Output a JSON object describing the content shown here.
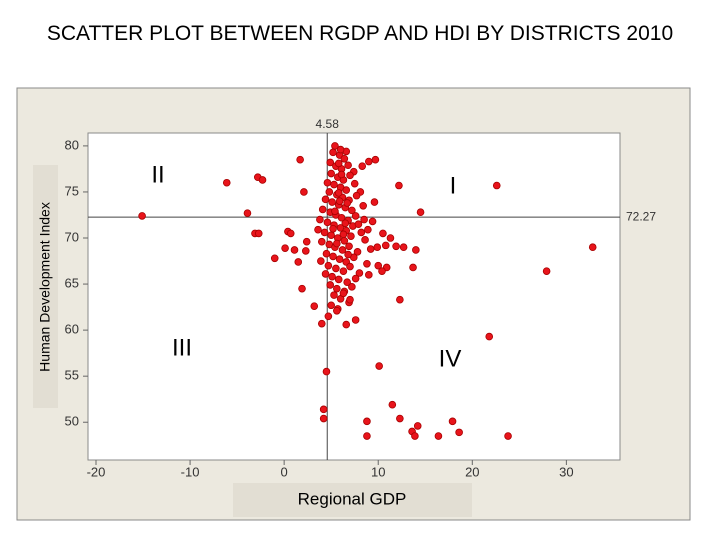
{
  "chart_data": {
    "type": "scatter",
    "title": "SCATTER PLOT BETWEEN RGDP AND HDI BY DISTRICTS 2010",
    "x_label": "Regional GDP",
    "y_label": "Human Development Index",
    "color": "#e8141b",
    "xlim": [
      -20.85,
      35.7
    ],
    "ylim": [
      45.9,
      81.4
    ],
    "xticks": [
      -20,
      -10,
      0,
      10,
      20,
      30
    ],
    "yticks": [
      50,
      55,
      60,
      65,
      70,
      75,
      80
    ],
    "reference_lines": {
      "x": 4.58,
      "y": 72.27
    },
    "annotations": [
      "I",
      "II",
      "III",
      "IV"
    ],
    "x": [
      5.2,
      5.9,
      6.4,
      4.9,
      5.5,
      6.1,
      6.8,
      7.4,
      5.0,
      5.7,
      6.3,
      7.0,
      4.6,
      5.3,
      6.0,
      6.6,
      7.5,
      8.1,
      4.8,
      5.6,
      6.2,
      6.9,
      7.7,
      4.4,
      5.1,
      5.8,
      6.5,
      7.2,
      8.4,
      4.1,
      4.9,
      5.5,
      6.1,
      6.8,
      7.6,
      3.8,
      4.6,
      5.3,
      6.0,
      6.6,
      7.3,
      8.2,
      3.6,
      4.3,
      5.0,
      5.7,
      6.4,
      7.1,
      8.6,
      4.0,
      4.8,
      5.4,
      6.2,
      6.9,
      7.8,
      9.2,
      4.5,
      5.2,
      5.9,
      6.6,
      7.4,
      8.8,
      3.9,
      4.7,
      5.5,
      6.3,
      7.0,
      8.0,
      4.4,
      5.1,
      5.8,
      6.7,
      7.6,
      4.9,
      5.6,
      6.4,
      7.2,
      5.3,
      6.0,
      6.9,
      5.0,
      5.7,
      6.5,
      5.4,
      6.7,
      5.9,
      6.3,
      5.6,
      6.8,
      5.2,
      6.1,
      5.8,
      6.6,
      5.4,
      6.0,
      7.9,
      8.9,
      9.4,
      8.5,
      9.0,
      10.0,
      10.8,
      11.3,
      9.6,
      8.3,
      10.5,
      9.9,
      -15.1,
      -6.1,
      -3.9,
      -2.8,
      -2.3,
      -3.1,
      -2.7,
      -1.0,
      0.4,
      0.7,
      0.1,
      1.1,
      1.5,
      1.7,
      2.1,
      1.9,
      2.3,
      2.4,
      3.2,
      4.0,
      4.7,
      4.5,
      4.2,
      4.2,
      10.1,
      11.5,
      8.8,
      8.8,
      12.3,
      13.6,
      13.9,
      14.2,
      16.4,
      17.9,
      18.6,
      22.6,
      21.8,
      23.8,
      27.9,
      32.8,
      12.2,
      12.3,
      14.5,
      13.7,
      14.0,
      11.9,
      12.7,
      10.9,
      10.4,
      9.7,
      9.0,
      6.3,
      7.0,
      7.6,
      5.6,
      6.6,
      5.8
    ],
    "values": [
      79.3,
      79.0,
      78.6,
      78.2,
      77.8,
      77.5,
      77.9,
      77.2,
      77.0,
      76.6,
      76.3,
      76.8,
      76.0,
      75.8,
      75.5,
      75.2,
      75.9,
      75.0,
      75.0,
      74.7,
      74.4,
      74.1,
      74.6,
      74.2,
      73.9,
      73.6,
      73.3,
      73.0,
      73.5,
      73.1,
      72.8,
      72.5,
      72.2,
      71.9,
      72.4,
      72.0,
      71.7,
      71.4,
      71.1,
      70.8,
      71.3,
      70.6,
      70.9,
      70.6,
      70.3,
      70.0,
      69.7,
      70.2,
      69.8,
      69.6,
      69.3,
      69.0,
      68.7,
      69.1,
      68.5,
      68.8,
      68.3,
      68.0,
      67.7,
      67.4,
      67.9,
      67.2,
      67.5,
      67.0,
      66.7,
      66.4,
      66.9,
      66.2,
      66.1,
      65.8,
      65.5,
      65.2,
      65.6,
      64.9,
      64.5,
      64.2,
      64.7,
      63.8,
      63.4,
      63.0,
      62.7,
      62.3,
      71.6,
      72.9,
      73.8,
      74.0,
      70.4,
      69.4,
      68.2,
      71.0,
      76.9,
      78.1,
      79.4,
      80.0,
      79.6,
      71.5,
      70.9,
      71.8,
      72.0,
      66.0,
      67.0,
      69.2,
      70.0,
      73.9,
      77.8,
      70.5,
      69.0,
      72.4,
      76.0,
      72.7,
      76.6,
      76.3,
      70.5,
      70.5,
      67.8,
      70.7,
      70.5,
      68.9,
      68.7,
      67.4,
      78.5,
      75.0,
      64.5,
      68.6,
      69.6,
      62.6,
      60.7,
      61.5,
      55.5,
      51.4,
      50.4,
      56.1,
      51.9,
      50.1,
      48.5,
      50.4,
      49.0,
      48.5,
      49.6,
      48.5,
      50.1,
      48.9,
      75.7,
      59.3,
      48.5,
      66.4,
      69.0,
      75.7,
      63.3,
      72.8,
      66.8,
      68.7,
      69.1,
      69.0,
      66.8,
      66.4,
      78.5,
      78.3,
      64.0,
      63.3,
      61.1,
      62.1,
      60.6,
      74.9
    ]
  }
}
